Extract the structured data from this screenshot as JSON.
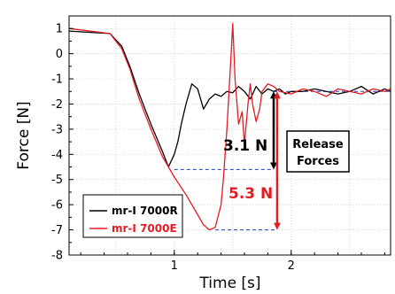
{
  "chart_data": {
    "type": "line",
    "xlabel": "Time [s]",
    "ylabel": "Force [N]",
    "xlim": [
      0.1,
      2.85
    ],
    "ylim": [
      -8,
      1.5
    ],
    "x_ticks": [
      1,
      2
    ],
    "y_ticks": [
      1,
      0,
      -1,
      -2,
      -3,
      -4,
      -5,
      -6,
      -7,
      -8
    ],
    "grid": true,
    "legend_position": "bottom-left",
    "series": [
      {
        "name": "mr-I 7000R",
        "color": "#000000",
        "x": [
          0.1,
          0.45,
          0.55,
          0.62,
          0.7,
          0.8,
          0.9,
          0.95,
          1.0,
          1.03,
          1.06,
          1.1,
          1.15,
          1.2,
          1.25,
          1.3,
          1.35,
          1.4,
          1.45,
          1.5,
          1.55,
          1.6,
          1.65,
          1.7,
          1.75,
          1.8,
          1.85,
          1.9,
          1.95,
          2.0,
          2.1,
          2.2,
          2.3,
          2.4,
          2.5,
          2.6,
          2.7,
          2.8,
          2.85
        ],
        "y": [
          0.9,
          0.8,
          0.3,
          -0.5,
          -1.6,
          -2.8,
          -3.9,
          -4.5,
          -4.0,
          -3.5,
          -2.8,
          -2.0,
          -1.2,
          -1.4,
          -2.2,
          -1.8,
          -1.6,
          -1.7,
          -1.5,
          -1.55,
          -1.3,
          -1.5,
          -1.8,
          -1.3,
          -1.6,
          -1.4,
          -1.5,
          -1.4,
          -1.6,
          -1.5,
          -1.5,
          -1.4,
          -1.5,
          -1.6,
          -1.5,
          -1.3,
          -1.6,
          -1.4,
          -1.5
        ]
      },
      {
        "name": "mr-I 7000E",
        "color": "#e31b23",
        "x": [
          0.1,
          0.45,
          0.55,
          0.62,
          0.7,
          0.8,
          0.9,
          0.95,
          1.0,
          1.1,
          1.2,
          1.25,
          1.3,
          1.35,
          1.4,
          1.42,
          1.45,
          1.48,
          1.5,
          1.52,
          1.55,
          1.58,
          1.6,
          1.63,
          1.65,
          1.67,
          1.7,
          1.73,
          1.75,
          1.8,
          1.85,
          1.9,
          2.0,
          2.1,
          2.2,
          2.3,
          2.4,
          2.5,
          2.6,
          2.7,
          2.8,
          2.85
        ],
        "y": [
          1.0,
          0.8,
          0.2,
          -0.6,
          -1.8,
          -3.0,
          -4.1,
          -4.5,
          -4.9,
          -5.6,
          -6.4,
          -6.8,
          -7.0,
          -6.9,
          -6.0,
          -5.0,
          -3.0,
          -0.5,
          1.2,
          -1.0,
          -2.8,
          -2.3,
          -3.6,
          -2.0,
          -1.2,
          -2.0,
          -2.7,
          -2.2,
          -1.5,
          -1.2,
          -1.3,
          -1.5,
          -1.6,
          -1.4,
          -1.5,
          -1.7,
          -1.4,
          -1.5,
          -1.6,
          -1.4,
          -1.5,
          -1.4
        ]
      }
    ],
    "reference_lines": [
      {
        "color": "#1f3fbf",
        "y": -4.6,
        "x": [
          1.0,
          1.85
        ]
      },
      {
        "color": "#1f3fbf",
        "y": -1.5,
        "x": [
          1.85,
          2.85
        ]
      },
      {
        "color": "#1f3fbf",
        "y": -7.0,
        "x": [
          1.35,
          1.88
        ]
      }
    ],
    "annotations": {
      "black_force": "3.1 N",
      "red_force": "5.3 N",
      "release_line1": "Release",
      "release_line2": "Forces"
    }
  }
}
